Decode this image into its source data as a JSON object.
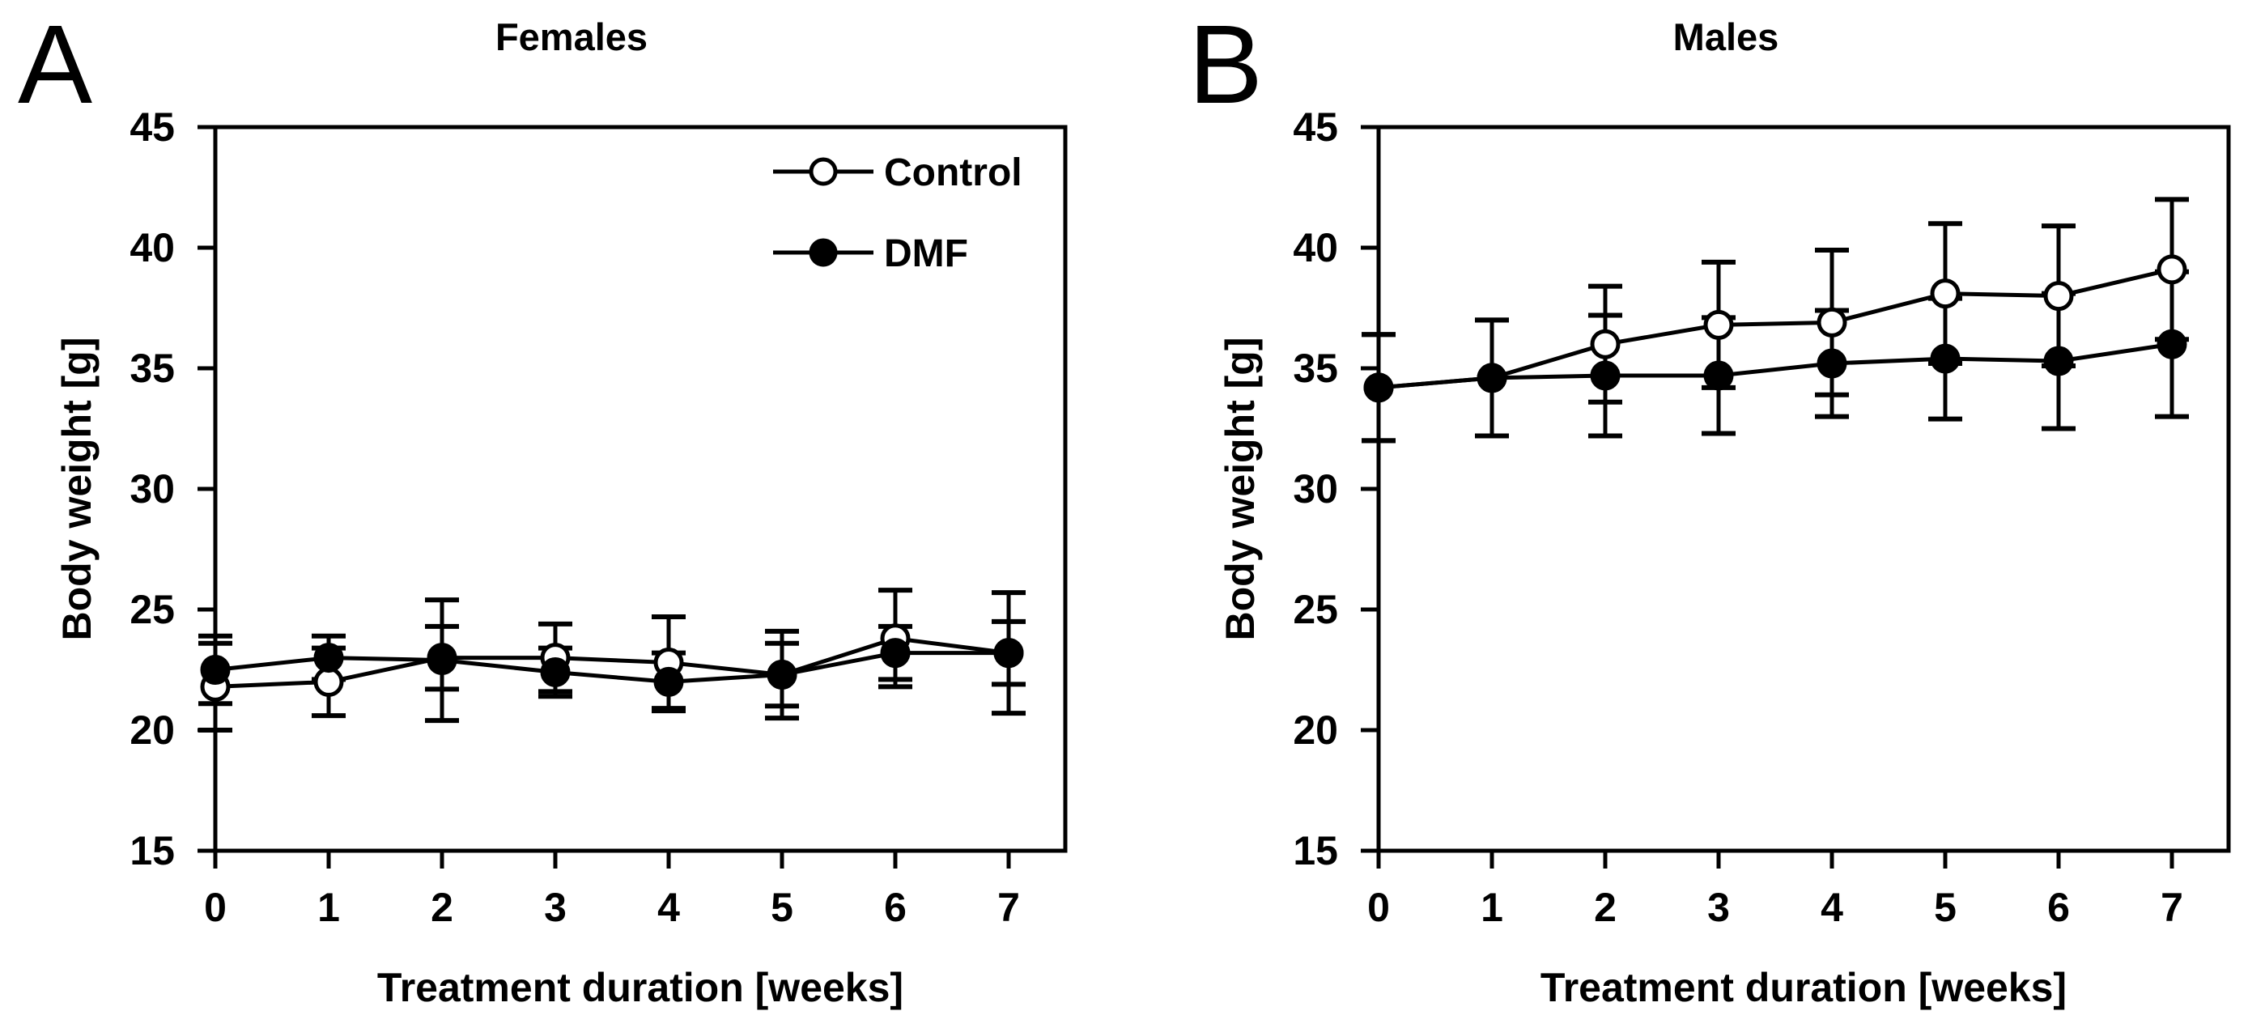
{
  "colors": {
    "foreground": "#000000",
    "background": "#ffffff"
  },
  "chart_data": [
    {
      "type": "line",
      "panel_letter": "A",
      "title": "Females",
      "xlabel": "Treatment duration [weeks]",
      "ylabel": "Body weight [g]",
      "x": [
        0,
        1,
        2,
        3,
        4,
        5,
        6,
        7
      ],
      "xticks": [
        0,
        1,
        2,
        3,
        4,
        5,
        6,
        7
      ],
      "yticks": [
        15,
        20,
        25,
        30,
        35,
        40,
        45
      ],
      "xlim": [
        0,
        7.5
      ],
      "ylim": [
        15,
        45
      ],
      "grid": false,
      "error_bars": true,
      "legend": {
        "visible": true,
        "position": "top-right-inside",
        "entries": [
          "Control",
          "DMF"
        ]
      },
      "series": [
        {
          "name": "Control",
          "marker": "open-circle",
          "color": "#000000",
          "marker_fill": "#ffffff",
          "values": [
            21.8,
            22.0,
            23.0,
            23.0,
            22.8,
            22.3,
            23.8,
            23.2
          ],
          "errors": [
            1.8,
            1.4,
            1.3,
            1.4,
            1.9,
            1.8,
            2.0,
            2.5
          ]
        },
        {
          "name": "DMF",
          "marker": "filled-circle",
          "color": "#000000",
          "marker_fill": "#000000",
          "values": [
            22.5,
            23.0,
            22.9,
            22.4,
            22.0,
            22.3,
            23.2,
            23.2
          ],
          "errors": [
            1.4,
            0.9,
            2.5,
            1.0,
            1.2,
            1.3,
            1.1,
            1.3
          ]
        }
      ]
    },
    {
      "type": "line",
      "panel_letter": "B",
      "title": "Males",
      "xlabel": "Treatment duration [weeks]",
      "ylabel": "Body weight [g]",
      "x": [
        0,
        1,
        2,
        3,
        4,
        5,
        6,
        7
      ],
      "xticks": [
        0,
        1,
        2,
        3,
        4,
        5,
        6,
        7
      ],
      "yticks": [
        15,
        20,
        25,
        30,
        35,
        40,
        45
      ],
      "xlim": [
        0,
        7.5
      ],
      "ylim": [
        15,
        45
      ],
      "grid": false,
      "error_bars": true,
      "legend": {
        "visible": false,
        "position": null,
        "entries": [
          "Control",
          "DMF"
        ]
      },
      "series": [
        {
          "name": "Control",
          "marker": "open-circle",
          "color": "#000000",
          "marker_fill": "#ffffff",
          "values": [
            34.2,
            34.6,
            36.0,
            36.8,
            36.9,
            38.1,
            38.0,
            39.1
          ],
          "errors": [
            2.2,
            2.4,
            2.4,
            2.6,
            3.0,
            2.9,
            2.9,
            2.9
          ]
        },
        {
          "name": "DMF",
          "marker": "filled-circle",
          "color": "#000000",
          "marker_fill": "#000000",
          "values": [
            34.2,
            34.6,
            34.7,
            34.7,
            35.2,
            35.4,
            35.3,
            36.0
          ],
          "errors": [
            2.2,
            2.4,
            2.5,
            2.4,
            2.2,
            2.5,
            2.8,
            3.0
          ]
        }
      ]
    }
  ]
}
